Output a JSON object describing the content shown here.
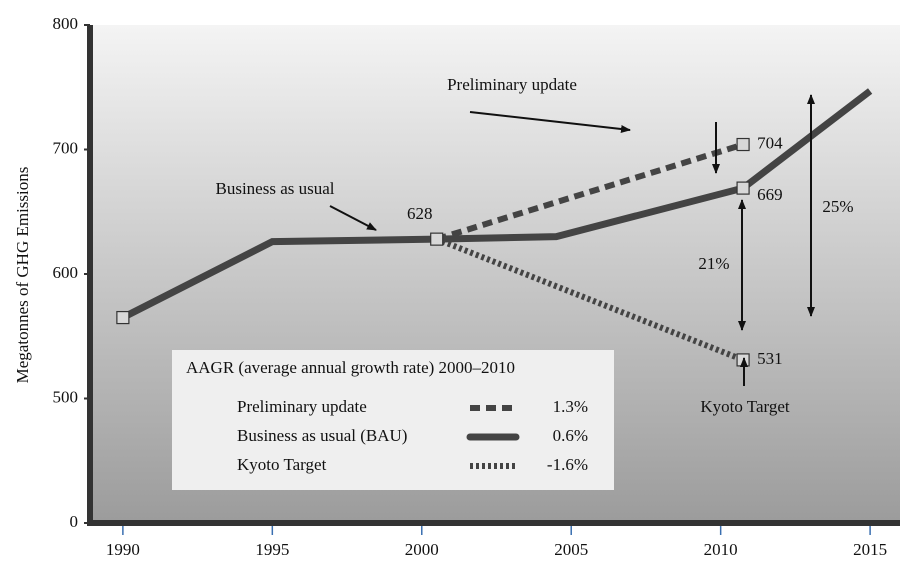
{
  "chart_data": {
    "type": "line",
    "ylabel": "Megatonnes of GHG Emissions",
    "xlim": [
      1988.9,
      2016
    ],
    "xticks": [
      1990,
      1995,
      2000,
      2005,
      2010,
      2015
    ],
    "ylim": [
      0,
      800
    ],
    "yticks": [
      0,
      500,
      600,
      700,
      800
    ],
    "series": [
      {
        "name": "Preliminary update",
        "color": "#444444",
        "dash": "dashed",
        "aagr": "1.3%",
        "x": [
          2000.5,
          2010.75
        ],
        "values": [
          628,
          704
        ]
      },
      {
        "name": "Business as usual (BAU)",
        "color": "#444444",
        "dash": "solid",
        "aagr": "0.6%",
        "x": [
          1990,
          1995,
          2000.5,
          2004.5,
          2010.75,
          2015
        ],
        "values": [
          565,
          626,
          628,
          630,
          669,
          747
        ]
      },
      {
        "name": "Kyoto Target",
        "color": "#444444",
        "dash": "dotted",
        "aagr": "-1.6%",
        "x": [
          2000.5,
          2010.75
        ],
        "values": [
          628,
          531
        ]
      }
    ],
    "legend_title": "AAGR (average annual growth rate) 2000–2010",
    "annotations": [
      "Preliminary update",
      "Business as usual",
      "21%",
      "25%",
      "Kyoto Target"
    ]
  }
}
